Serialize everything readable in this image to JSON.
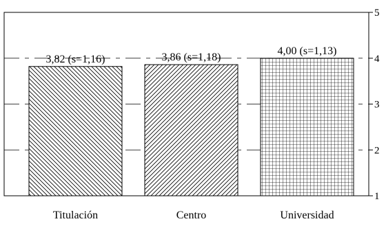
{
  "chart_data": {
    "type": "bar",
    "categories": [
      "Titulación",
      "Centro",
      "Universidad"
    ],
    "values": [
      3.82,
      3.86,
      4.0
    ],
    "value_labels": [
      "3,82 (s=1,16)",
      "3,86 (s=1,18)",
      "4,00 (s=1,13)"
    ],
    "bar_patterns": [
      "diagonal-backslash",
      "diagonal-slash",
      "crosshatch-grid"
    ],
    "ylim": [
      1,
      5
    ],
    "yticks": [
      1,
      2,
      3,
      4,
      5
    ],
    "ytick_labels": [
      "1",
      "2",
      "3",
      "4",
      "5"
    ],
    "y_axis_side": "right",
    "grid": "dashed horizontal at 2, 3, 4",
    "legend": "none"
  }
}
